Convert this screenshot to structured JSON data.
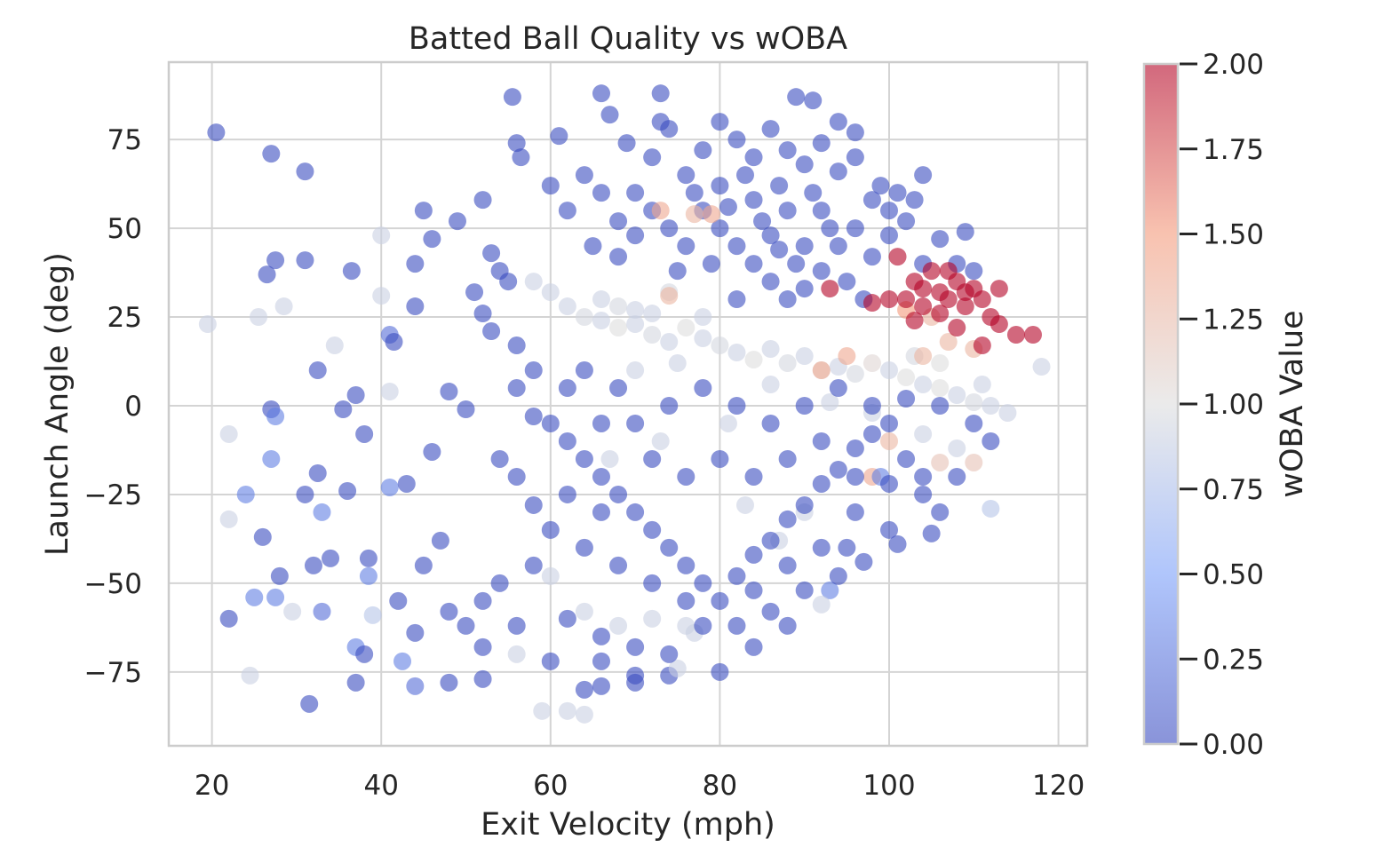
{
  "chart_data": {
    "type": "scatter",
    "title": "Batted Ball Quality vs wOBA",
    "xlabel": "Exit Velocity (mph)",
    "ylabel": "Launch Angle (deg)",
    "xlim": [
      14.9,
      123.4
    ],
    "ylim": [
      -95.8,
      96.8
    ],
    "xticks": [
      20,
      40,
      60,
      80,
      100,
      120
    ],
    "yticks": [
      -75,
      -50,
      -25,
      0,
      25,
      50,
      75
    ],
    "grid": true,
    "colormap": "coolwarm",
    "marker_alpha": 0.6,
    "colorbar": {
      "label": "wOBA Value",
      "range": [
        0,
        2
      ],
      "ticks": [
        "0.00",
        "0.25",
        "0.50",
        "0.75",
        "1.00",
        "1.25",
        "1.50",
        "1.75",
        "2.00"
      ],
      "stops": [
        "#3b4cc0",
        "#7b9ff9",
        "#dddddd",
        "#f49a7b",
        "#b40426"
      ]
    },
    "points_format": [
      "exit_velocity",
      "launch_angle",
      "woba"
    ],
    "points": [
      [
        20.5,
        77,
        0
      ],
      [
        27,
        71,
        0
      ],
      [
        31,
        66,
        0
      ],
      [
        19.5,
        23,
        0.9
      ],
      [
        22,
        -8,
        0.9
      ],
      [
        22,
        -60,
        0
      ],
      [
        31.5,
        -84,
        0
      ],
      [
        26.5,
        37,
        0
      ],
      [
        27.5,
        41,
        0
      ],
      [
        31,
        41,
        0
      ],
      [
        36.5,
        38,
        0
      ],
      [
        40,
        48,
        0.9
      ],
      [
        40,
        31,
        0.9
      ],
      [
        25.5,
        25,
        0.9
      ],
      [
        28.5,
        28,
        0.9
      ],
      [
        27,
        -1,
        0
      ],
      [
        27.5,
        -3,
        0.3
      ],
      [
        27,
        -15,
        0.3
      ],
      [
        24,
        -25,
        0.3
      ],
      [
        22,
        -32,
        0.9
      ],
      [
        26,
        -37,
        0
      ],
      [
        28,
        -48,
        0
      ],
      [
        25,
        -54,
        0.3
      ],
      [
        27.5,
        -54,
        0.3
      ],
      [
        24.5,
        -76,
        0.9
      ],
      [
        29.5,
        -58,
        0.9
      ],
      [
        33,
        -58,
        0.2
      ],
      [
        32.5,
        10,
        0
      ],
      [
        34.5,
        17,
        0.9
      ],
      [
        35.5,
        -1,
        0
      ],
      [
        37,
        3,
        0
      ],
      [
        38,
        -8,
        0
      ],
      [
        32.5,
        -19,
        0
      ],
      [
        31,
        -25,
        0
      ],
      [
        33,
        -30,
        0.3
      ],
      [
        36,
        -24,
        0
      ],
      [
        32,
        -45,
        0
      ],
      [
        34,
        -43,
        0
      ],
      [
        38.5,
        -43,
        0
      ],
      [
        38.5,
        -48,
        0.3
      ],
      [
        39,
        -59,
        0.8
      ],
      [
        37,
        -68,
        0.3
      ],
      [
        38,
        -70,
        0
      ],
      [
        37,
        -78,
        0
      ],
      [
        41,
        20,
        0.2
      ],
      [
        41.5,
        18,
        0
      ],
      [
        41,
        4,
        0.9
      ],
      [
        41,
        -23,
        0.3
      ],
      [
        43,
        -22,
        0
      ],
      [
        44,
        40,
        0
      ],
      [
        44,
        28,
        0
      ],
      [
        45,
        55,
        0
      ],
      [
        46,
        47,
        0
      ],
      [
        49,
        52,
        0
      ],
      [
        48,
        4,
        0
      ],
      [
        50,
        -1,
        0
      ],
      [
        46,
        -13,
        0
      ],
      [
        47,
        -38,
        0
      ],
      [
        45,
        -45,
        0
      ],
      [
        42,
        -55,
        0
      ],
      [
        44,
        -64,
        0
      ],
      [
        42.5,
        -72,
        0.3
      ],
      [
        44,
        -79,
        0.2
      ],
      [
        48,
        -78,
        0
      ],
      [
        52,
        -77,
        0
      ],
      [
        55.5,
        87,
        0
      ],
      [
        56,
        74,
        0
      ],
      [
        56.5,
        70,
        0
      ],
      [
        61,
        76,
        0
      ],
      [
        60,
        62,
        0
      ],
      [
        52,
        58,
        0
      ],
      [
        53,
        43,
        0
      ],
      [
        54,
        38,
        0
      ],
      [
        55,
        35,
        0
      ],
      [
        51,
        32,
        0
      ],
      [
        52,
        26,
        0
      ],
      [
        53,
        21,
        0
      ],
      [
        56,
        17,
        0
      ],
      [
        58,
        -3,
        0
      ],
      [
        59,
        -86,
        0.9
      ],
      [
        62,
        -86,
        0.9
      ],
      [
        64,
        -87,
        0.9
      ],
      [
        66,
        -79,
        0
      ],
      [
        70,
        -76,
        0
      ],
      [
        74,
        -76,
        0
      ],
      [
        80,
        -75,
        0
      ],
      [
        75,
        -74,
        0.9
      ],
      [
        93,
        -52,
        0.3
      ],
      [
        92,
        -56,
        0.9
      ],
      [
        95,
        -40,
        0
      ],
      [
        97,
        -44,
        0
      ],
      [
        105,
        -36,
        0
      ],
      [
        101,
        -39,
        0
      ],
      [
        112,
        -29,
        0.8
      ],
      [
        110,
        -16,
        1.2
      ],
      [
        118,
        11,
        0.9
      ],
      [
        115,
        20,
        2
      ],
      [
        113,
        23,
        2
      ],
      [
        117,
        20,
        2
      ],
      [
        109,
        49,
        0
      ],
      [
        104,
        65,
        0
      ],
      [
        89,
        87,
        0
      ],
      [
        91,
        86,
        0
      ],
      [
        73,
        88,
        0
      ],
      [
        66,
        88,
        0
      ],
      [
        98,
        -20,
        1.4
      ],
      [
        99,
        -20,
        0.3
      ],
      [
        70,
        60,
        0
      ],
      [
        72,
        70,
        0
      ],
      [
        74,
        78,
        0
      ],
      [
        76,
        65,
        0
      ],
      [
        78,
        72,
        0
      ],
      [
        80,
        80,
        0
      ],
      [
        82,
        75,
        0
      ],
      [
        84,
        70,
        0
      ],
      [
        86,
        78,
        0
      ],
      [
        88,
        72,
        0
      ],
      [
        90,
        68,
        0
      ],
      [
        92,
        74,
        0
      ],
      [
        94,
        66,
        0
      ],
      [
        96,
        70,
        0
      ],
      [
        98,
        58,
        0
      ],
      [
        100,
        55,
        0
      ],
      [
        78,
        55,
        0
      ],
      [
        80,
        50,
        0
      ],
      [
        82,
        45,
        0
      ],
      [
        84,
        40,
        0
      ],
      [
        86,
        35,
        0
      ],
      [
        88,
        30,
        0
      ],
      [
        90,
        33,
        0
      ],
      [
        92,
        38,
        0
      ],
      [
        94,
        45,
        0
      ],
      [
        96,
        50,
        0
      ],
      [
        98,
        42,
        0
      ],
      [
        100,
        48,
        0
      ],
      [
        102,
        52,
        0
      ],
      [
        104,
        40,
        0
      ],
      [
        76,
        45,
        0
      ],
      [
        74,
        50,
        0
      ],
      [
        72,
        55,
        0
      ],
      [
        70,
        48,
        0
      ],
      [
        68,
        52,
        0
      ],
      [
        66,
        60,
        0
      ],
      [
        64,
        65,
        0
      ],
      [
        62,
        55,
        0
      ],
      [
        65,
        45,
        0
      ],
      [
        68,
        42,
        0
      ],
      [
        80,
        62,
        0
      ],
      [
        84,
        58,
        0
      ],
      [
        88,
        55,
        0
      ],
      [
        92,
        55,
        0
      ],
      [
        86,
        48,
        0
      ],
      [
        90,
        45,
        0
      ],
      [
        82,
        30,
        0
      ],
      [
        95,
        35,
        0
      ],
      [
        97,
        30,
        0
      ],
      [
        75,
        38,
        0
      ],
      [
        73,
        80,
        0
      ],
      [
        69,
        74,
        0
      ],
      [
        67,
        82,
        0
      ],
      [
        94,
        80,
        0
      ],
      [
        96,
        77,
        0
      ],
      [
        99,
        62,
        0
      ],
      [
        101,
        60,
        0
      ],
      [
        103,
        58,
        0
      ],
      [
        106,
        47,
        0
      ],
      [
        108,
        40,
        0
      ],
      [
        110,
        38,
        0
      ],
      [
        83,
        65,
        0
      ],
      [
        87,
        62,
        0
      ],
      [
        91,
        60,
        0
      ],
      [
        85,
        52,
        0
      ],
      [
        89,
        40,
        0
      ],
      [
        79,
        40,
        0
      ],
      [
        77,
        60,
        0
      ],
      [
        93,
        50,
        0
      ],
      [
        81,
        56,
        0
      ],
      [
        87,
        44,
        0
      ],
      [
        62,
        28,
        0.9
      ],
      [
        64,
        25,
        0.95
      ],
      [
        66,
        24,
        0.9
      ],
      [
        68,
        22,
        1.0
      ],
      [
        70,
        23,
        0.9
      ],
      [
        72,
        20,
        0.95
      ],
      [
        74,
        18,
        0.9
      ],
      [
        76,
        22,
        1.0
      ],
      [
        78,
        19,
        0.9
      ],
      [
        80,
        17,
        0.95
      ],
      [
        82,
        15,
        0.9
      ],
      [
        84,
        13,
        1.0
      ],
      [
        86,
        16,
        0.9
      ],
      [
        88,
        12,
        0.95
      ],
      [
        90,
        14,
        0.9
      ],
      [
        92,
        10,
        1.0
      ],
      [
        94,
        11,
        0.9
      ],
      [
        96,
        9,
        0.95
      ],
      [
        98,
        12,
        1.05
      ],
      [
        100,
        10,
        0.9
      ],
      [
        102,
        8,
        1.0
      ],
      [
        104,
        6,
        0.9
      ],
      [
        106,
        5,
        1.0
      ],
      [
        108,
        3,
        0.9
      ],
      [
        110,
        1,
        0.95
      ],
      [
        112,
        0,
        0.9
      ],
      [
        114,
        -2,
        0.9
      ],
      [
        66,
        30,
        0.9
      ],
      [
        68,
        28,
        0.95
      ],
      [
        70,
        27,
        0.9
      ],
      [
        72,
        26,
        0.9
      ],
      [
        74,
        32,
        0.95
      ],
      [
        60,
        32,
        0.9
      ],
      [
        58,
        35,
        0.9
      ],
      [
        78,
        25,
        0.9
      ],
      [
        70,
        10,
        0.9
      ],
      [
        75,
        12,
        0.9
      ],
      [
        81,
        -5,
        0.9
      ],
      [
        86,
        6,
        0.9
      ],
      [
        93,
        1,
        0.9
      ],
      [
        98,
        -2,
        0.9
      ],
      [
        104,
        -8,
        0.9
      ],
      [
        108,
        -12,
        0.9
      ],
      [
        64,
        -58,
        0.9
      ],
      [
        68,
        -62,
        0.9
      ],
      [
        72,
        -60,
        0.9
      ],
      [
        76,
        -62,
        0.9
      ],
      [
        77,
        -64,
        0.9
      ],
      [
        60,
        -48,
        0.9
      ],
      [
        56,
        -70,
        0.9
      ],
      [
        73,
        -10,
        0.9
      ],
      [
        67,
        -15,
        0.9
      ],
      [
        83,
        -28,
        0.9
      ],
      [
        87,
        -38,
        0.9
      ],
      [
        90,
        -30,
        0.9
      ],
      [
        103,
        14,
        0.95
      ],
      [
        106,
        12,
        1.0
      ],
      [
        111,
        6,
        0.9
      ],
      [
        73,
        55,
        1.4
      ],
      [
        77,
        54,
        1.3
      ],
      [
        79,
        54,
        1.4
      ],
      [
        74,
        31,
        1.3
      ],
      [
        92,
        10,
        1.4
      ],
      [
        95,
        14,
        1.4
      ],
      [
        102,
        27,
        1.5
      ],
      [
        105,
        25,
        1.3
      ],
      [
        104,
        14,
        1.3
      ],
      [
        107,
        18,
        1.3
      ],
      [
        110,
        16,
        1.3
      ],
      [
        106,
        -16,
        1.2
      ],
      [
        100,
        -10,
        1.3
      ],
      [
        101,
        42,
        2
      ],
      [
        103,
        35,
        2
      ],
      [
        104,
        33,
        2
      ],
      [
        105,
        38,
        2
      ],
      [
        106,
        32,
        2
      ],
      [
        107,
        30,
        2
      ],
      [
        108,
        35,
        2
      ],
      [
        109,
        28,
        2
      ],
      [
        110,
        33,
        2
      ],
      [
        111,
        30,
        2
      ],
      [
        112,
        25,
        2
      ],
      [
        106,
        26,
        2
      ],
      [
        108,
        22,
        2
      ],
      [
        104,
        28,
        2
      ],
      [
        102,
        30,
        2
      ],
      [
        100,
        30,
        2
      ],
      [
        93,
        33,
        2
      ],
      [
        98,
        29,
        2
      ],
      [
        111,
        17,
        2
      ],
      [
        109,
        32,
        2
      ],
      [
        113,
        33,
        2
      ],
      [
        103,
        24,
        2
      ],
      [
        107,
        38,
        2
      ],
      [
        60,
        -5,
        0
      ],
      [
        62,
        -10,
        0
      ],
      [
        64,
        -15,
        0
      ],
      [
        66,
        -20,
        0
      ],
      [
        68,
        -25,
        0
      ],
      [
        70,
        -30,
        0
      ],
      [
        72,
        -35,
        0
      ],
      [
        74,
        -40,
        0
      ],
      [
        76,
        -45,
        0
      ],
      [
        78,
        -50,
        0
      ],
      [
        80,
        -55,
        0
      ],
      [
        82,
        -48,
        0
      ],
      [
        84,
        -42,
        0
      ],
      [
        86,
        -38,
        0
      ],
      [
        88,
        -32,
        0
      ],
      [
        90,
        -28,
        0
      ],
      [
        92,
        -22,
        0
      ],
      [
        94,
        -18,
        0
      ],
      [
        96,
        -12,
        0
      ],
      [
        98,
        -8,
        0
      ],
      [
        100,
        -5,
        0
      ],
      [
        102,
        -15,
        0
      ],
      [
        104,
        -25,
        0
      ],
      [
        106,
        -30,
        0
      ],
      [
        100,
        -35,
        0
      ],
      [
        96,
        -30,
        0
      ],
      [
        92,
        -40,
        0
      ],
      [
        88,
        -45,
        0
      ],
      [
        84,
        -52,
        0
      ],
      [
        86,
        -58,
        0
      ],
      [
        76,
        -55,
        0
      ],
      [
        72,
        -50,
        0
      ],
      [
        68,
        -45,
        0
      ],
      [
        64,
        -40,
        0
      ],
      [
        60,
        -35,
        0
      ],
      [
        58,
        -28,
        0
      ],
      [
        56,
        -20,
        0
      ],
      [
        54,
        -15,
        0
      ],
      [
        62,
        -60,
        0
      ],
      [
        66,
        -65,
        0
      ],
      [
        70,
        -68,
        0
      ],
      [
        74,
        -70,
        0
      ],
      [
        78,
        -62,
        0
      ],
      [
        82,
        -62,
        0
      ],
      [
        70,
        -5,
        0
      ],
      [
        74,
        0,
        0
      ],
      [
        78,
        5,
        0
      ],
      [
        82,
        0,
        0
      ],
      [
        86,
        -5,
        0
      ],
      [
        90,
        0,
        0
      ],
      [
        94,
        5,
        0
      ],
      [
        98,
        0,
        0
      ],
      [
        102,
        2,
        0
      ],
      [
        106,
        0,
        0
      ],
      [
        110,
        -5,
        0
      ],
      [
        112,
        -10,
        0
      ],
      [
        108,
        -20,
        0
      ],
      [
        80,
        -15,
        0
      ],
      [
        84,
        -20,
        0
      ],
      [
        76,
        -20,
        0
      ],
      [
        72,
        -15,
        0
      ],
      [
        66,
        -5,
        0
      ],
      [
        62,
        5,
        0
      ],
      [
        58,
        10,
        0
      ],
      [
        56,
        5,
        0
      ],
      [
        64,
        10,
        0
      ],
      [
        68,
        5,
        0
      ],
      [
        88,
        -15,
        0
      ],
      [
        92,
        -10,
        0
      ],
      [
        96,
        -20,
        0
      ],
      [
        100,
        -22,
        0
      ],
      [
        104,
        -20,
        0
      ],
      [
        66,
        -30,
        0
      ],
      [
        62,
        -25,
        0
      ],
      [
        58,
        -45,
        0
      ],
      [
        54,
        -50,
        0
      ],
      [
        52,
        -55,
        0
      ],
      [
        50,
        -62,
        0
      ],
      [
        48,
        -58,
        0
      ],
      [
        52,
        -68,
        0
      ],
      [
        56,
        -62,
        0
      ],
      [
        60,
        -72,
        0
      ],
      [
        64,
        -80,
        0
      ],
      [
        66,
        -72,
        0
      ],
      [
        70,
        -78,
        0
      ],
      [
        84,
        -68,
        0
      ],
      [
        88,
        -62,
        0
      ],
      [
        90,
        -52,
        0
      ],
      [
        94,
        -48,
        0
      ]
    ]
  }
}
